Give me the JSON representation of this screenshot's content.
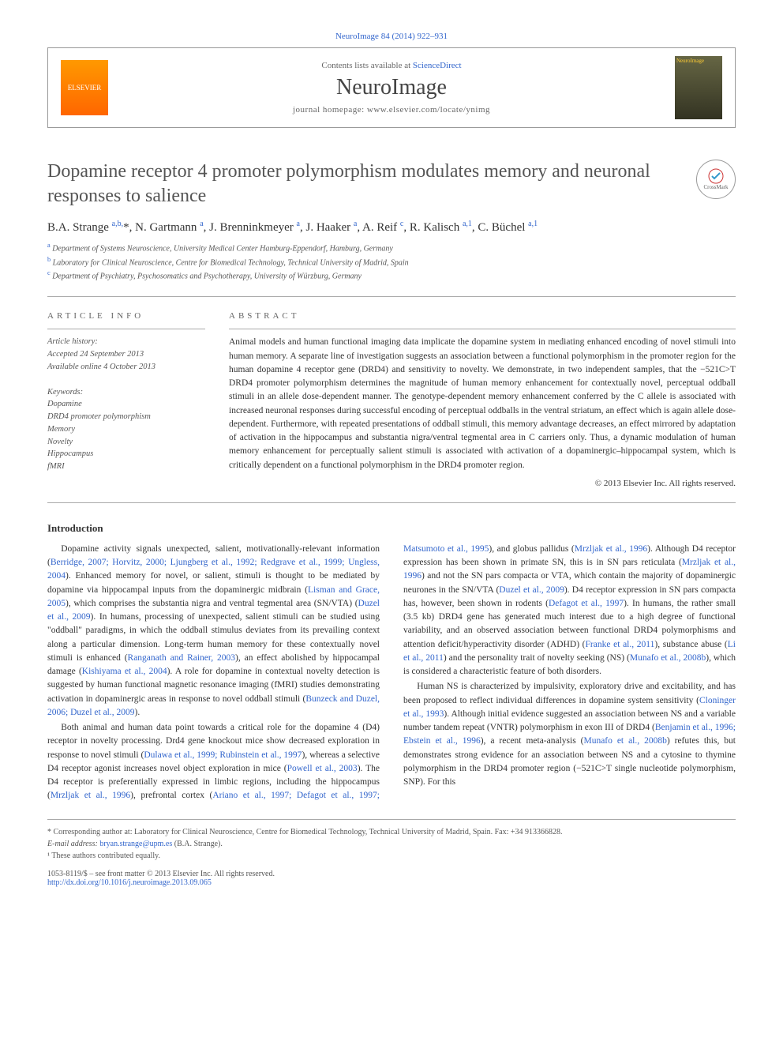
{
  "header": {
    "citation_link": "NeuroImage 84 (2014) 922–931",
    "contents_prefix": "Contents lists available at ",
    "contents_link": "ScienceDirect",
    "journal_name": "NeuroImage",
    "homepage_prefix": "journal homepage: ",
    "homepage_url": "www.elsevier.com/locate/ynimg",
    "elsevier_text": "ELSEVIER",
    "cover_text": "NeuroImage"
  },
  "title": "Dopamine receptor 4 promoter polymorphism modulates memory and neuronal responses to salience",
  "crossmark": "CrossMark",
  "authors_html": "B.A. Strange <sup>a,b,</sup>*, N. Gartmann <sup>a</sup>, J. Brenninkmeyer <sup>a</sup>, J. Haaker <sup>a</sup>, A. Reif <sup>c</sup>, R. Kalisch <sup>a,1</sup>, C. Büchel <sup>a,1</sup>",
  "affiliations": {
    "a": "Department of Systems Neuroscience, University Medical Center Hamburg-Eppendorf, Hamburg, Germany",
    "b": "Laboratory for Clinical Neuroscience, Centre for Biomedical Technology, Technical University of Madrid, Spain",
    "c": "Department of Psychiatry, Psychosomatics and Psychotherapy, University of Würzburg, Germany"
  },
  "article_info": {
    "heading": "ARTICLE INFO",
    "history_label": "Article history:",
    "accepted": "Accepted 24 September 2013",
    "online": "Available online 4 October 2013",
    "keywords_label": "Keywords:",
    "keywords": [
      "Dopamine",
      "DRD4 promoter polymorphism",
      "Memory",
      "Novelty",
      "Hippocampus",
      "fMRI"
    ]
  },
  "abstract": {
    "heading": "ABSTRACT",
    "text": "Animal models and human functional imaging data implicate the dopamine system in mediating enhanced encoding of novel stimuli into human memory. A separate line of investigation suggests an association between a functional polymorphism in the promoter region for the human dopamine 4 receptor gene (DRD4) and sensitivity to novelty. We demonstrate, in two independent samples, that the −521C>T DRD4 promoter polymorphism determines the magnitude of human memory enhancement for contextually novel, perceptual oddball stimuli in an allele dose-dependent manner. The genotype-dependent memory enhancement conferred by the C allele is associated with increased neuronal responses during successful encoding of perceptual oddballs in the ventral striatum, an effect which is again allele dose-dependent. Furthermore, with repeated presentations of oddball stimuli, this memory advantage decreases, an effect mirrored by adaptation of activation in the hippocampus and substantia nigra/ventral tegmental area in C carriers only. Thus, a dynamic modulation of human memory enhancement for perceptually salient stimuli is associated with activation of a dopaminergic–hippocampal system, which is critically dependent on a functional polymorphism in the DRD4 promoter region.",
    "copyright": "© 2013 Elsevier Inc. All rights reserved."
  },
  "intro": {
    "heading": "Introduction",
    "para1": "Dopamine activity signals unexpected, salient, motivationally-relevant information (Berridge, 2007; Horvitz, 2000; Ljungberg et al., 1992; Redgrave et al., 1999; Ungless, 2004). Enhanced memory for novel, or salient, stimuli is thought to be mediated by dopamine via hippocampal inputs from the dopaminergic midbrain (Lisman and Grace, 2005), which comprises the substantia nigra and ventral tegmental area (SN/VTA) (Duzel et al., 2009). In humans, processing of unexpected, salient stimuli can be studied using \"oddball\" paradigms, in which the oddball stimulus deviates from its prevailing context along a particular dimension. Long-term human memory for these contextually novel stimuli is enhanced (Ranganath and Rainer, 2003), an effect abolished by hippocampal damage (Kishiyama et al., 2004). A role for dopamine in contextual novelty detection is suggested by human functional magnetic resonance imaging (fMRI) studies demonstrating activation in dopaminergic areas in response to novel oddball stimuli (Bunzeck and Duzel, 2006; Duzel et al., 2009).",
    "para2": "Both animal and human data point towards a critical role for the dopamine 4 (D4) receptor in novelty processing. Drd4 gene knockout mice show decreased exploration in response to novel stimuli (Dulawa et al., 1999; Rubinstein et al., 1997), whereas a selective D4 receptor agonist increases novel object exploration in mice (Powell et al., 2003). The D4 receptor is preferentially expressed in limbic regions, including the hippocampus (Mrzljak et al., 1996), prefrontal cortex (Ariano et al., 1997; Defagot et al., 1997; Matsumoto et al., 1995), and globus pallidus (Mrzljak et al., 1996). Although D4 receptor expression has been shown in primate SN, this is in SN pars reticulata (Mrzljak et al., 1996) and not the SN pars compacta or VTA, which contain the majority of dopaminergic neurones in the SN/VTA (Duzel et al., 2009). D4 receptor expression in SN pars compacta has, however, been shown in rodents (Defagot et al., 1997). In humans, the rather small (3.5 kb) DRD4 gene has generated much interest due to a high degree of functional variability, and an observed association between functional DRD4 polymorphisms and attention deficit/hyperactivity disorder (ADHD) (Franke et al., 2011), substance abuse (Li et al., 2011) and the personality trait of novelty seeking (NS) (Munafo et al., 2008b), which is considered a characteristic feature of both disorders.",
    "para3": "Human NS is characterized by impulsivity, exploratory drive and excitability, and has been proposed to reflect individual differences in dopamine system sensitivity (Cloninger et al., 1993). Although initial evidence suggested an association between NS and a variable number tandem repeat (VNTR) polymorphism in exon III of DRD4 (Benjamin et al., 1996; Ebstein et al., 1996), a recent meta-analysis (Munafo et al., 2008b) refutes this, but demonstrates strong evidence for an association between NS and a cytosine to thymine polymorphism in the DRD4 promoter region (−521C>T single nucleotide polymorphism, SNP). For this"
  },
  "footnotes": {
    "corresponding": "* Corresponding author at: Laboratory for Clinical Neuroscience, Centre for Biomedical Technology, Technical University of Madrid, Spain. Fax: +34 913366828.",
    "email_label": "E-mail address: ",
    "email": "bryan.strange@upm.es",
    "email_suffix": " (B.A. Strange).",
    "equal": "¹ These authors contributed equally."
  },
  "footer": {
    "issn": "1053-8119/$ – see front matter © 2013 Elsevier Inc. All rights reserved.",
    "doi": "http://dx.doi.org/10.1016/j.neuroimage.2013.09.065"
  },
  "colors": {
    "link": "#3366cc",
    "text": "#333333",
    "muted": "#666666",
    "border": "#aaaaaa"
  }
}
